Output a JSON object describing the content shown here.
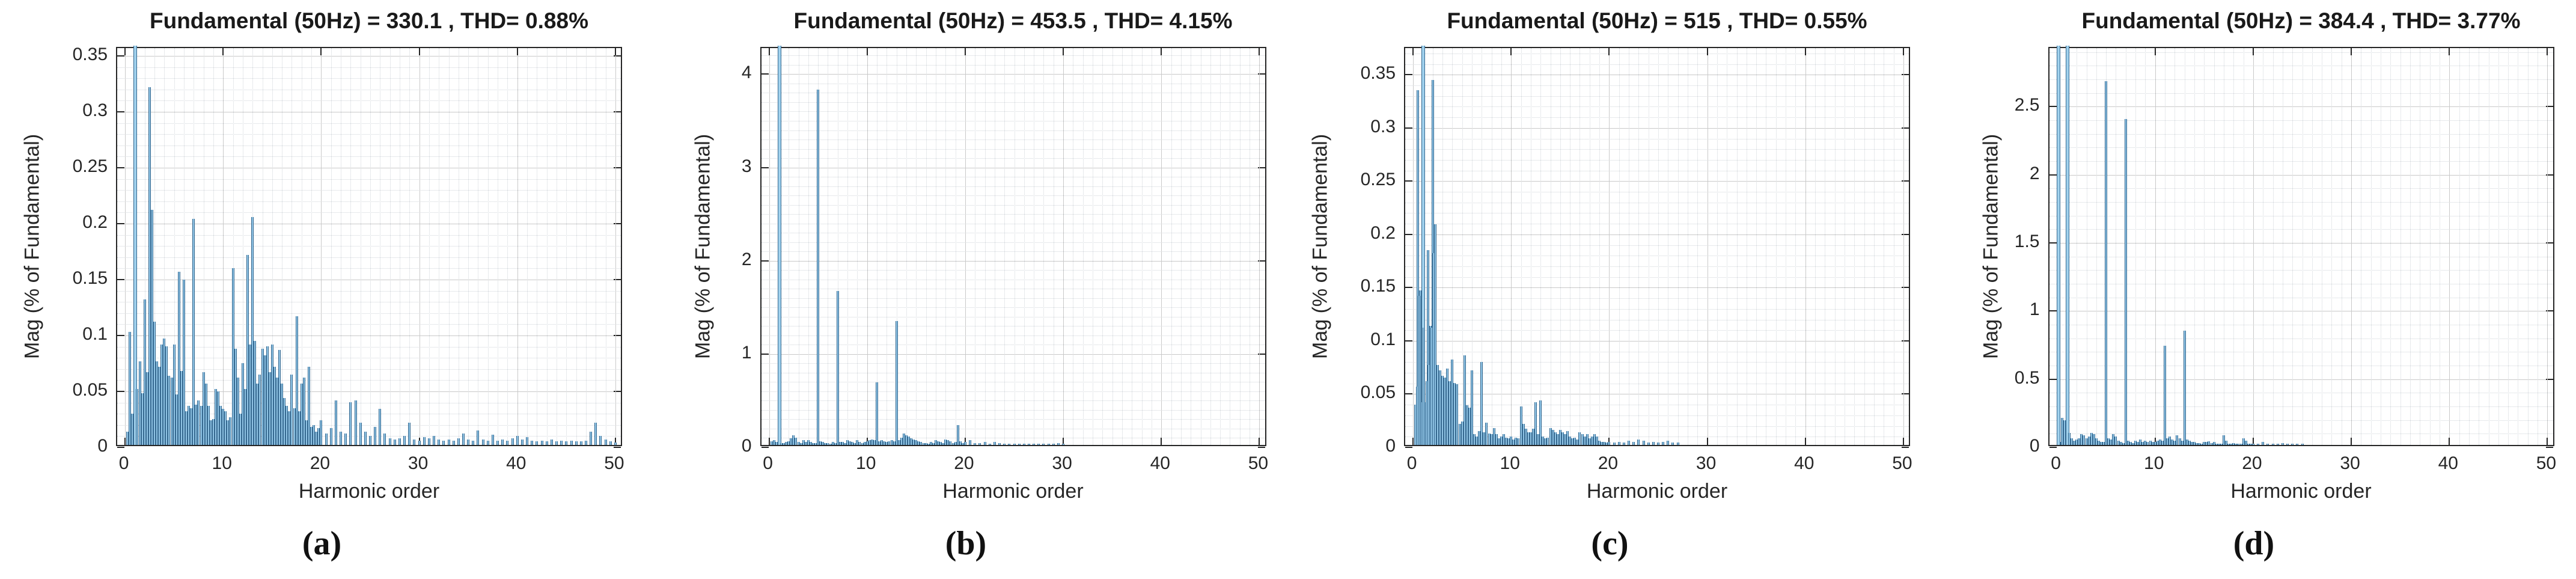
{
  "figure_type": "MATLAB powergui FFT harmonic spectrum figure with four sub-plots",
  "colors": {
    "background": "#ffffff",
    "bar_fill": "#8fc3e4",
    "bar_edge": "#35688f",
    "axis_box": "#262626",
    "grid_major": "#c9c9c9",
    "grid_minor": "#cfd4d9",
    "text": "#1a1a1a"
  },
  "chart_data": [
    {
      "type": "bar",
      "panel_label": "(a)",
      "title": "Fundamental (50Hz) = 330.1 , THD= 0.88%",
      "fundamental_hz": 50,
      "fundamental_value": 330.1,
      "thd_percent": 0.88,
      "xlabel": "Harmonic order",
      "ylabel": "Mag (% of Fundamental)",
      "xlim": [
        -0.8,
        50.8
      ],
      "ylim": [
        0,
        0.357
      ],
      "xticks": [
        0,
        10,
        20,
        30,
        40,
        50
      ],
      "yticks": [
        0,
        0.05,
        0.1,
        0.15,
        0.2,
        0.25,
        0.3,
        0.35
      ],
      "ytick_labels": [
        "0",
        "0.05",
        "0.1",
        "0.15",
        "0.2",
        "0.25",
        "0.3",
        "0.35"
      ],
      "x_minor_step": 1,
      "y_minor_step": 0.01,
      "clipped_at_top": [
        1
      ],
      "grid": true,
      "legend": null,
      "segments": [
        {
          "x0": 0.25,
          "dx": 0.25,
          "mag": [
            0.012,
            0.101,
            0.028,
            0.357,
            0.05,
            0.075,
            0.046,
            0.13,
            0.065,
            0.32,
            0.21,
            0.11,
            0.075,
            0.07,
            0.09,
            0.095,
            0.088,
            0.062,
            0.06,
            0.09,
            0.045,
            0.155,
            0.066,
            0.148,
            0.03,
            0.035,
            0.033,
            0.202,
            0.036,
            0.04,
            0.035,
            0.065,
            0.055,
            0.035,
            0.022,
            0.023,
            0.05,
            0.048,
            0.035,
            0.032,
            0.03,
            0.022,
            0.025,
            0.158,
            0.086,
            0.06,
            0.028,
            0.073,
            0.05,
            0.17,
            0.09,
            0.204,
            0.093,
            0.055,
            0.063,
            0.086,
            0.08,
            0.088,
            0.065,
            0.09,
            0.07,
            0.06,
            0.085,
            0.055,
            0.042,
            0.035,
            0.03,
            0.063,
            0.033,
            0.115,
            0.03,
            0.055,
            0.06,
            0.022,
            0.07,
            0.016,
            0.018,
            0.012,
            0.015,
            0.022
          ]
        },
        {
          "x0": 20.5,
          "dx": 0.5,
          "mag": [
            0.01,
            0.015,
            0.04,
            0.012,
            0.01,
            0.038,
            0.04,
            0.02,
            0.012,
            0.008,
            0.016,
            0.032,
            0.01,
            0.006,
            0.005,
            0.006,
            0.008,
            0.02,
            0.005,
            0.004,
            0.007,
            0.006,
            0.008,
            0.005,
            0.004,
            0.005,
            0.004,
            0.006,
            0.01,
            0.005,
            0.004,
            0.013,
            0.005,
            0.004,
            0.009,
            0.004,
            0.005,
            0.004,
            0.006,
            0.008,
            0.005,
            0.007,
            0.004,
            0.003,
            0.004,
            0.003,
            0.005,
            0.003,
            0.004,
            0.003,
            0.004,
            0.003,
            0.003,
            0.004,
            0.012,
            0.02,
            0.008,
            0.005,
            0.003,
            0.002
          ]
        }
      ],
      "extra_points": []
    },
    {
      "type": "bar",
      "panel_label": "(b)",
      "title": "Fundamental (50Hz) = 453.5 , THD= 4.15%",
      "fundamental_hz": 50,
      "fundamental_value": 453.5,
      "thd_percent": 4.15,
      "xlabel": "Harmonic order",
      "ylabel": "Mag (% of Fundamental)",
      "xlim": [
        -0.8,
        50.8
      ],
      "ylim": [
        0,
        4.28
      ],
      "xticks": [
        0,
        10,
        20,
        30,
        40,
        50
      ],
      "yticks": [
        0,
        1,
        2,
        3,
        4
      ],
      "ytick_labels": [
        "0",
        "1",
        "2",
        "3",
        "4"
      ],
      "x_minor_step": 1,
      "y_minor_step": 0.1,
      "clipped_at_top": [
        1
      ],
      "grid": true,
      "legend": null,
      "main_harmonics": {
        "order": [
          1,
          5,
          7,
          11,
          13,
          19.25
        ],
        "mag": [
          4.28,
          3.81,
          1.65,
          0.67,
          1.33,
          0.21
        ]
      },
      "segments": [
        {
          "x0": 0.25,
          "dx": 0.25,
          "mag": [
            0.04,
            0.05,
            0.03,
            4.28,
            0.02,
            0.02,
            0.03,
            0.04,
            0.07,
            0.1,
            0.08,
            0.03,
            0.02,
            0.05,
            0.03,
            0.05,
            0.03,
            0.02,
            0.02,
            3.81,
            0.04,
            0.03,
            0.02,
            0.02,
            0.015,
            0.03,
            0.02,
            1.65,
            0.03,
            0.03,
            0.02,
            0.05,
            0.04,
            0.03,
            0.02,
            0.05,
            0.03,
            0.02,
            0.03,
            0.04,
            0.05,
            0.06,
            0.05,
            0.67,
            0.04,
            0.05,
            0.04,
            0.03,
            0.04,
            0.05,
            0.04,
            1.33,
            0.05,
            0.08,
            0.12,
            0.1,
            0.09,
            0.07,
            0.06,
            0.05,
            0.04,
            0.03,
            0.02,
            0.02,
            0.015,
            0.03,
            0.02,
            0.05,
            0.04,
            0.03,
            0.02,
            0.06,
            0.05,
            0.04,
            0.02,
            0.03,
            0.21,
            0.04,
            0.02,
            0.03
          ]
        },
        {
          "x0": 20.5,
          "dx": 0.5,
          "mag": [
            0.05,
            0.02,
            0.02,
            0.03,
            0.015,
            0.03,
            0.02,
            0.015,
            0.01,
            0.008,
            0.006,
            0.005,
            0.004,
            0.004,
            0.003,
            0.003,
            0.01,
            0.015,
            0.02,
            0.01
          ]
        }
      ],
      "extra_points": []
    },
    {
      "type": "bar",
      "panel_label": "(c)",
      "title": "Fundamental (50Hz) = 515 , THD= 0.55%",
      "fundamental_hz": 50,
      "fundamental_value": 515,
      "thd_percent": 0.55,
      "xlabel": "Harmonic order",
      "ylabel": "Mag (% of Fundamental)",
      "xlim": [
        -0.8,
        50.8
      ],
      "ylim": [
        0,
        0.375
      ],
      "xticks": [
        0,
        10,
        20,
        30,
        40,
        50
      ],
      "yticks": [
        0,
        0.05,
        0.1,
        0.15,
        0.2,
        0.25,
        0.3,
        0.35
      ],
      "ytick_labels": [
        "0",
        "0.05",
        "0.1",
        "0.15",
        "0.2",
        "0.25",
        "0.3",
        "0.35"
      ],
      "x_minor_step": 1,
      "y_minor_step": 0.01,
      "clipped_at_top": [
        1
      ],
      "grid": true,
      "legend": null,
      "segments": [
        {
          "x0": 0.25,
          "dx": 0.25,
          "mag": [
            0.038,
            0.333,
            0.145,
            0.375,
            0.04,
            0.183,
            0.112,
            0.343,
            0.207,
            0.075,
            0.07,
            0.065,
            0.063,
            0.072,
            0.06,
            0.08,
            0.058,
            0.057,
            0.02,
            0.022,
            0.084,
            0.037,
            0.035,
            0.07,
            0.01,
            0.008,
            0.013,
            0.078,
            0.012,
            0.021,
            0.011,
            0.01,
            0.016,
            0.01,
            0.006,
            0.008,
            0.01,
            0.007,
            0.006,
            0.008,
            0.005,
            0.007,
            0.006,
            0.036,
            0.02,
            0.015,
            0.012,
            0.012,
            0.015,
            0.04,
            0.01,
            0.042,
            0.008,
            0.006,
            0.007,
            0.016,
            0.014,
            0.012,
            0.01,
            0.014,
            0.012,
            0.01,
            0.013,
            0.008,
            0.006,
            0.007,
            0.005,
            0.012,
            0.01,
            0.008,
            0.01,
            0.006,
            0.008,
            0.01,
            0.008,
            0.004,
            0.003,
            0.003,
            0.002,
            0.003
          ]
        },
        {
          "x0": 20.5,
          "dx": 0.5,
          "mag": [
            0.002,
            0.003,
            0.002,
            0.004,
            0.003,
            0.005,
            0.004,
            0.002,
            0.003,
            0.002,
            0.003,
            0.004,
            0.002,
            0.002
          ]
        }
      ],
      "extra_points": [
        [
          0.4,
          0.055
        ],
        [
          0.6,
          0.14
        ],
        [
          0.9,
          0.04
        ],
        [
          1.1,
          0.11
        ],
        [
          1.4,
          0.06
        ],
        [
          1.6,
          0.075
        ],
        [
          1.9,
          0.11
        ],
        [
          2.1,
          0.18
        ]
      ]
    },
    {
      "type": "bar",
      "panel_label": "(d)",
      "title": "Fundamental (50Hz) = 384.4 , THD= 3.77%",
      "fundamental_hz": 50,
      "fundamental_value": 384.4,
      "thd_percent": 3.77,
      "xlabel": "Harmonic order",
      "ylabel": "Mag (% of Fundamental)",
      "xlim": [
        -0.8,
        50.8
      ],
      "ylim": [
        0,
        2.93
      ],
      "xticks": [
        0,
        10,
        20,
        30,
        40,
        50
      ],
      "yticks": [
        0,
        0.5,
        1,
        1.5,
        2,
        2.5
      ],
      "ytick_labels": [
        "0",
        "0.5",
        "1",
        "1.5",
        "2",
        "2.5"
      ],
      "x_minor_step": 1,
      "y_minor_step": 0.1,
      "clipped_at_top": [
        0.07,
        1
      ],
      "grid": true,
      "legend": null,
      "main_harmonics": {
        "order": [
          1,
          5,
          7,
          11,
          13
        ],
        "mag": [
          2.93,
          2.67,
          2.39,
          0.73,
          0.84
        ]
      },
      "segments": [
        {
          "x0": 0.25,
          "dx": 0.25,
          "mag": [
            0.02,
            0.2,
            0.18,
            2.93,
            0.09,
            0.05,
            0.03,
            0.04,
            0.05,
            0.08,
            0.07,
            0.05,
            0.06,
            0.09,
            0.08,
            0.05,
            0.03,
            0.02,
            0.02,
            2.67,
            0.05,
            0.04,
            0.08,
            0.06,
            0.03,
            0.02,
            0.015,
            2.39,
            0.03,
            0.02,
            0.015,
            0.03,
            0.02,
            0.04,
            0.02,
            0.03,
            0.02,
            0.03,
            0.02,
            0.02,
            0.03,
            0.04,
            0.03,
            0.73,
            0.05,
            0.06,
            0.04,
            0.03,
            0.07,
            0.05,
            0.03,
            0.84,
            0.04,
            0.03,
            0.02,
            0.02,
            0.015,
            0.015,
            0.01,
            0.02,
            0.02,
            0.025,
            0.015,
            0.02,
            0.01,
            0.01,
            0.01,
            0.07,
            0.03,
            0.01,
            0.01,
            0.015,
            0.01,
            0.008,
            0.008,
            0.05,
            0.03,
            0.01,
            0.008,
            0.01
          ]
        },
        {
          "x0": 20.5,
          "dx": 0.5,
          "mag": [
            0.008,
            0.02,
            0.006,
            0.01,
            0.006,
            0.015,
            0.005,
            0.008,
            0.004,
            0.01
          ]
        }
      ],
      "extra_points": [
        [
          0.07,
          2.93
        ]
      ]
    }
  ]
}
